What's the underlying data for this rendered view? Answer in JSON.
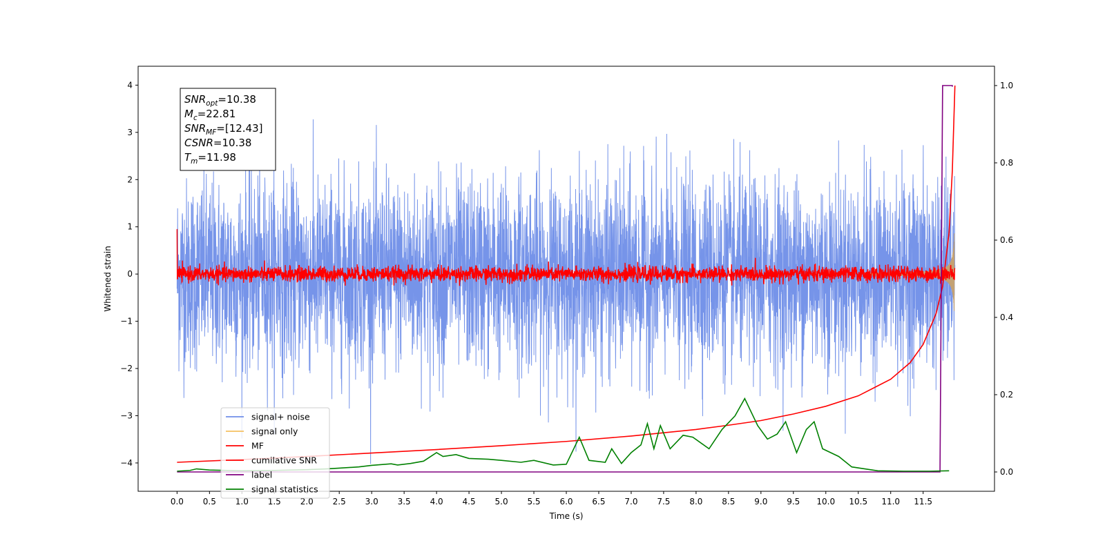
{
  "chart_data": {
    "type": "line",
    "xlabel": "Time (s)",
    "ylabel": "Whitened strain",
    "xlim": [
      -0.6,
      12.6
    ],
    "ylim": [
      -4.6,
      4.4
    ],
    "y2lim": [
      -0.05,
      1.05
    ],
    "x_ticks": [
      "0.0",
      "0.5",
      "1.0",
      "1.5",
      "2.0",
      "2.5",
      "3.0",
      "3.5",
      "4.0",
      "4.5",
      "5.0",
      "5.5",
      "6.0",
      "6.5",
      "7.0",
      "7.5",
      "8.0",
      "8.5",
      "9.0",
      "9.5",
      "10.0",
      "10.5",
      "11.0",
      "11.5"
    ],
    "y_ticks": [
      "4",
      "3",
      "2",
      "1",
      "0",
      "−1",
      "−2",
      "−3",
      "−4"
    ],
    "y2_ticks": [
      "1.0",
      "0.8",
      "0.6",
      "0.4",
      "0.2",
      "0.0"
    ],
    "legend_position": "lower-left",
    "series": [
      {
        "name": "signal+ noise",
        "axis": "left",
        "color": "#6f8ee8",
        "noise_amplitude": 1.0,
        "t_start": 0.0,
        "t_end": 11.99
      },
      {
        "name": "signal only",
        "axis": "left",
        "color": "#f5c060",
        "chirp_end_amplitude": 0.85,
        "t_merger": 11.98
      },
      {
        "name": "MF",
        "axis": "left",
        "color": "#ff0000",
        "noise_amplitude": 0.08,
        "t_start": 0.0,
        "t_end": 11.99
      },
      {
        "name": "cumilative SNR",
        "axis": "right",
        "color": "#ff0000",
        "x": [
          0.0,
          1.0,
          2.0,
          3.0,
          4.0,
          5.0,
          6.0,
          7.0,
          8.0,
          8.5,
          9.0,
          9.5,
          10.0,
          10.5,
          11.0,
          11.3,
          11.5,
          11.7,
          11.8,
          11.9,
          11.95,
          11.99
        ],
        "y": [
          0.025,
          0.032,
          0.04,
          0.049,
          0.058,
          0.068,
          0.079,
          0.093,
          0.11,
          0.121,
          0.133,
          0.15,
          0.17,
          0.197,
          0.24,
          0.283,
          0.33,
          0.41,
          0.48,
          0.62,
          0.78,
          1.0
        ]
      },
      {
        "name": "label",
        "axis": "right",
        "color": "#800080",
        "x": [
          0.0,
          11.76,
          11.8,
          11.95,
          11.95
        ],
        "y": [
          0.0,
          0.0,
          1.0,
          1.0,
          0.997
        ]
      },
      {
        "name": "signal statistics",
        "axis": "right",
        "color": "#008000",
        "x": [
          0.0,
          0.2,
          0.3,
          0.5,
          1.0,
          1.5,
          2.0,
          2.3,
          2.5,
          2.8,
          3.0,
          3.3,
          3.4,
          3.6,
          3.8,
          4.0,
          4.1,
          4.3,
          4.5,
          4.8,
          5.0,
          5.3,
          5.5,
          5.8,
          6.0,
          6.2,
          6.35,
          6.6,
          6.7,
          6.85,
          7.0,
          7.15,
          7.25,
          7.35,
          7.45,
          7.6,
          7.8,
          7.95,
          8.2,
          8.4,
          8.6,
          8.75,
          8.95,
          9.1,
          9.25,
          9.38,
          9.55,
          9.7,
          9.82,
          9.95,
          10.2,
          10.4,
          10.8,
          11.2,
          11.6,
          11.9
        ],
        "y": [
          0.002,
          0.004,
          0.008,
          0.005,
          0.003,
          0.004,
          0.006,
          0.008,
          0.01,
          0.013,
          0.017,
          0.021,
          0.018,
          0.022,
          0.028,
          0.05,
          0.04,
          0.045,
          0.035,
          0.033,
          0.03,
          0.025,
          0.03,
          0.018,
          0.02,
          0.09,
          0.03,
          0.025,
          0.06,
          0.022,
          0.05,
          0.07,
          0.125,
          0.06,
          0.12,
          0.06,
          0.095,
          0.09,
          0.06,
          0.11,
          0.145,
          0.19,
          0.12,
          0.085,
          0.098,
          0.13,
          0.05,
          0.11,
          0.13,
          0.06,
          0.04,
          0.013,
          0.003,
          0.002,
          0.002,
          0.003
        ]
      }
    ],
    "annotation": {
      "lines": [
        {
          "base": "SNR",
          "sub": "opt",
          "value": "=10.38"
        },
        {
          "base": "M",
          "sub": "c",
          "value": "=22.81"
        },
        {
          "base": "SNR",
          "sub": "MF",
          "value": "=[12.43]"
        },
        {
          "base": "CSNR",
          "sub": "",
          "value": "=10.38"
        },
        {
          "base": "T",
          "sub": "m",
          "value": "=11.98"
        }
      ]
    }
  }
}
